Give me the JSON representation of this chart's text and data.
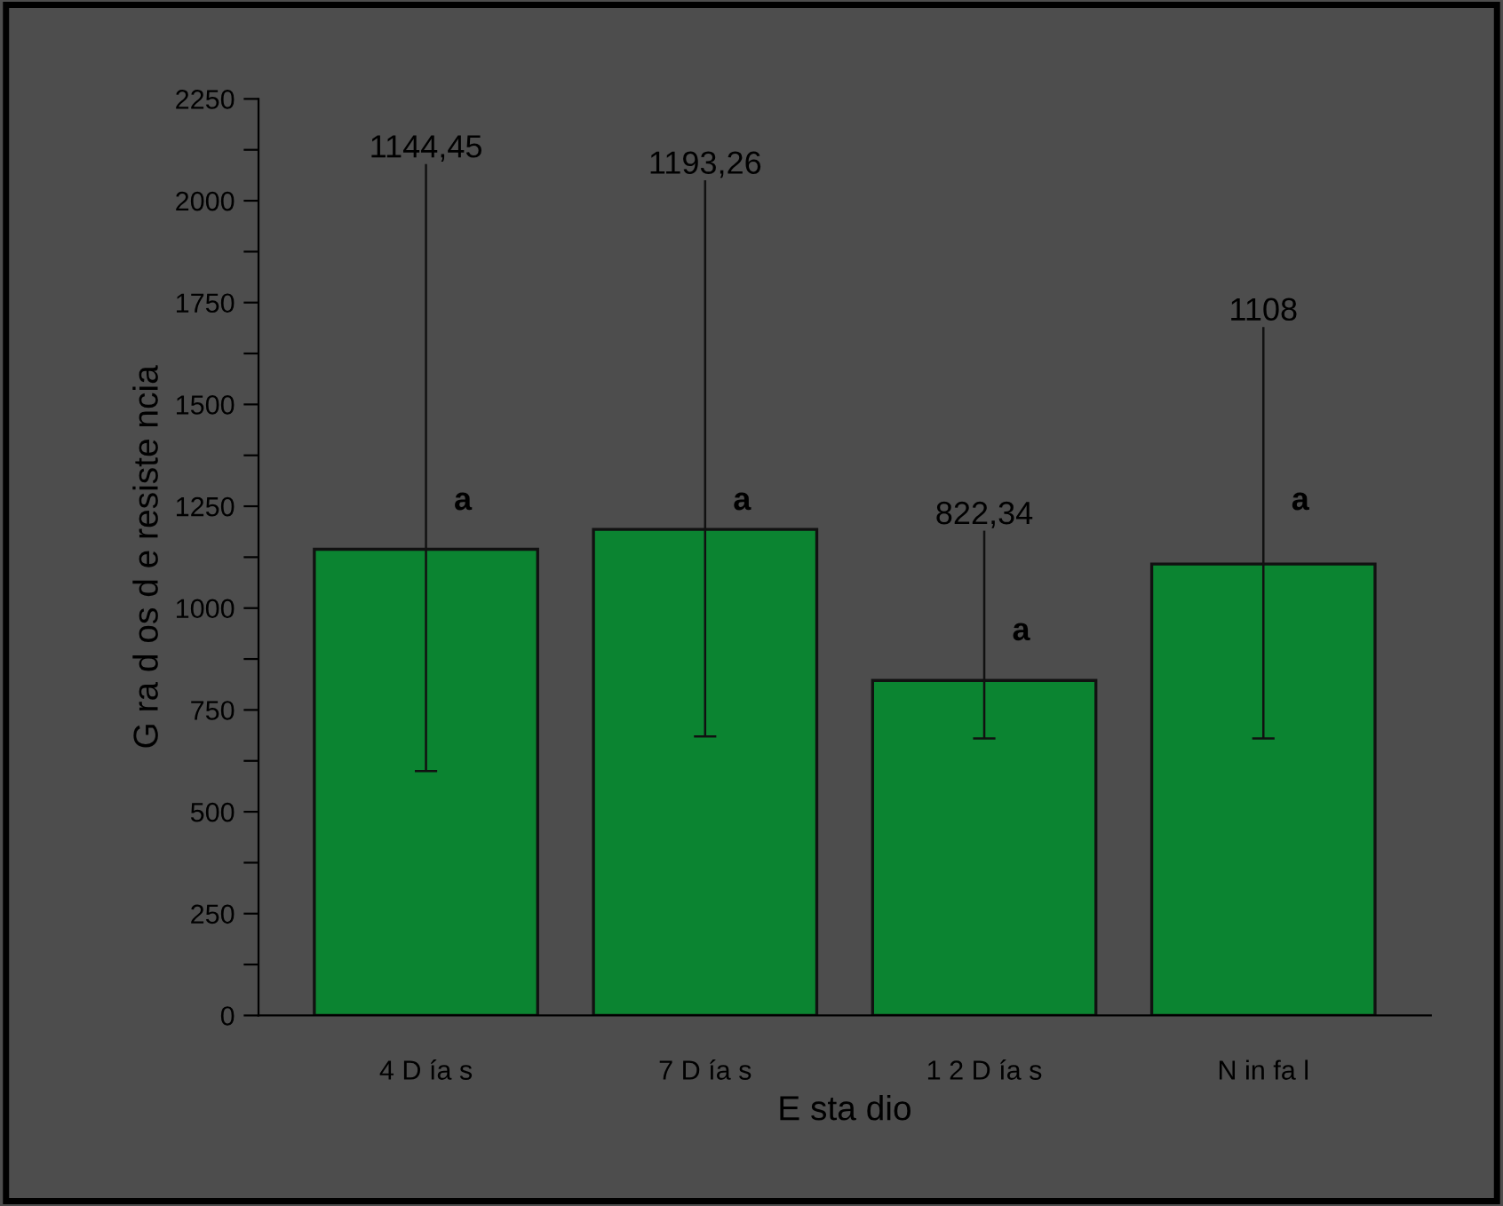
{
  "chart_data": {
    "type": "bar",
    "xlabel": "E sta dio",
    "ylabel": "G ra d os d e resiste ncia",
    "categories": [
      "4 D ía s",
      "7 D ía s",
      "1 2 D ía s",
      "N in fa l"
    ],
    "values": [
      1144.45,
      1193.26,
      822.34,
      1108
    ],
    "color": "#0b8431",
    "errors": [
      [
        600,
        2090
      ],
      [
        685,
        2050
      ],
      [
        680,
        1190
      ],
      [
        680,
        1690
      ]
    ],
    "annotations": [
      {
        "text": "1144,45",
        "x": "4 D ía s",
        "y": 2090
      },
      {
        "text": "1193,26",
        "x": "7 D ía s",
        "y": 2050
      },
      {
        "text": "822,34",
        "x": "1 2 D ía s",
        "y": 1190
      },
      {
        "text": "1108",
        "x": "N in fa l",
        "y": 1690
      },
      {
        "text": "a",
        "x": "4 D ía s",
        "y": 1225
      },
      {
        "text": "a",
        "x": "7 D ía s",
        "y": 1225
      },
      {
        "text": "a",
        "x": "1 2 D ía s",
        "y": 905
      },
      {
        "text": "a",
        "x": "N in fa l",
        "y": 1225
      }
    ],
    "ylim": [
      0,
      2250
    ],
    "yticks": [
      0,
      {
        "value": 125,
        "label": null
      },
      {
        "value": 250,
        "label": "250"
      },
      {
        "value": 375,
        "label": null
      },
      {
        "value": 500,
        "label": "500"
      },
      {
        "value": 625,
        "label": null
      },
      750,
      {
        "value": 875,
        "label": null
      },
      {
        "value": 1000,
        "label": "1000"
      },
      {
        "value": 1125,
        "label": null
      },
      {
        "value": 1250,
        "label": "1250"
      },
      {
        "value": 1375,
        "label": null
      },
      {
        "value": 1500,
        "label": "1500"
      },
      {
        "value": 1625,
        "label": null
      },
      {
        "value": 1750,
        "label": "1750"
      },
      {
        "value": 1875,
        "label": null
      },
      2000,
      {
        "value": 2125,
        "label": null
      },
      2250
    ],
    "grid": false,
    "legend": false
  }
}
